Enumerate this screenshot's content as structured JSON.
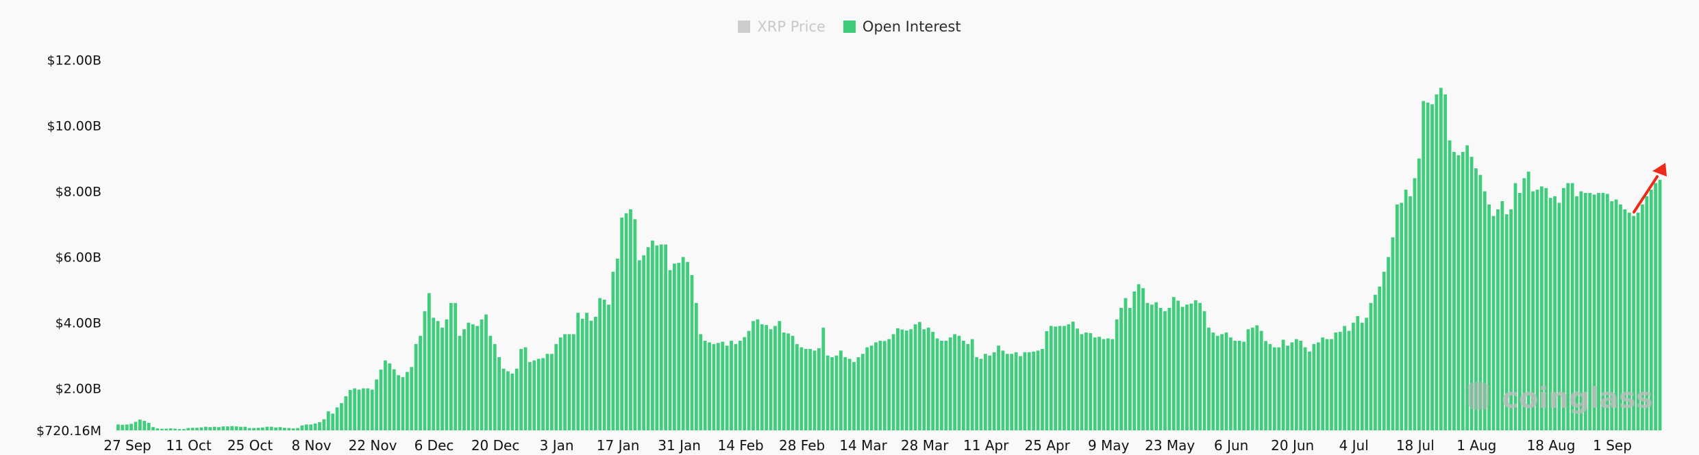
{
  "legend": [
    {
      "label": "XRP Price",
      "color": "#cccccc",
      "state": "off"
    },
    {
      "label": "Open Interest",
      "color": "#3fcd7c",
      "state": "on"
    }
  ],
  "watermark": "coinglass",
  "annotation": {
    "type": "arrow",
    "color": "#ee2a1b",
    "description": "red upward arrow at the last bars indicating rising open interest"
  },
  "chart_data": {
    "type": "bar",
    "title": "",
    "xlabel": "",
    "ylabel": "",
    "series": [
      {
        "name": "Open Interest",
        "color": "#3fcd7c"
      }
    ],
    "ylim": [
      0.72016,
      12.0
    ],
    "yticks": [
      {
        "label": "$12.00B",
        "value": 12.0
      },
      {
        "label": "$10.00B",
        "value": 10.0
      },
      {
        "label": "$8.00B",
        "value": 8.0
      },
      {
        "label": "$6.00B",
        "value": 6.0
      },
      {
        "label": "$4.00B",
        "value": 4.0
      },
      {
        "label": "$2.00B",
        "value": 2.0
      },
      {
        "label": "$720.16M",
        "value": 0.72016
      }
    ],
    "xticks": [
      {
        "label": "27 Sep",
        "index": 2
      },
      {
        "label": "11 Oct",
        "index": 16
      },
      {
        "label": "25 Oct",
        "index": 30
      },
      {
        "label": "8 Nov",
        "index": 44
      },
      {
        "label": "22 Nov",
        "index": 58
      },
      {
        "label": "6 Dec",
        "index": 72
      },
      {
        "label": "20 Dec",
        "index": 86
      },
      {
        "label": "3 Jan",
        "index": 100
      },
      {
        "label": "17 Jan",
        "index": 114
      },
      {
        "label": "31 Jan",
        "index": 128
      },
      {
        "label": "14 Feb",
        "index": 142
      },
      {
        "label": "28 Feb",
        "index": 156
      },
      {
        "label": "14 Mar",
        "index": 170
      },
      {
        "label": "28 Mar",
        "index": 184
      },
      {
        "label": "11 Apr",
        "index": 198
      },
      {
        "label": "25 Apr",
        "index": 212
      },
      {
        "label": "9 May",
        "index": 226
      },
      {
        "label": "23 May",
        "index": 240
      },
      {
        "label": "6 Jun",
        "index": 254
      },
      {
        "label": "20 Jun",
        "index": 268
      },
      {
        "label": "4 Jul",
        "index": 282
      },
      {
        "label": "18 Jul",
        "index": 296
      },
      {
        "label": "1 Aug",
        "index": 310
      },
      {
        "label": "18 Aug",
        "index": 327
      },
      {
        "label": "1 Sep",
        "index": 341
      }
    ],
    "unit": "USD billions",
    "values": [
      0.9,
      0.89,
      0.9,
      0.92,
      0.98,
      1.05,
      1.01,
      0.95,
      0.82,
      0.78,
      0.77,
      0.77,
      0.78,
      0.77,
      0.76,
      0.76,
      0.79,
      0.8,
      0.8,
      0.81,
      0.83,
      0.82,
      0.83,
      0.82,
      0.84,
      0.84,
      0.85,
      0.84,
      0.83,
      0.83,
      0.79,
      0.79,
      0.8,
      0.81,
      0.83,
      0.83,
      0.81,
      0.82,
      0.8,
      0.79,
      0.78,
      0.79,
      0.87,
      0.9,
      0.9,
      0.93,
      0.97,
      1.06,
      1.3,
      1.23,
      1.42,
      1.55,
      1.76,
      1.95,
      2.0,
      1.96,
      2.0,
      2.0,
      1.96,
      2.27,
      2.57,
      2.85,
      2.76,
      2.58,
      2.4,
      2.34,
      2.5,
      2.65,
      3.35,
      3.6,
      4.35,
      4.9,
      4.15,
      4.05,
      3.85,
      4.1,
      4.6,
      4.6,
      3.6,
      3.8,
      4.0,
      3.95,
      3.9,
      4.1,
      4.25,
      3.6,
      3.35,
      2.95,
      2.6,
      2.52,
      2.45,
      2.6,
      3.2,
      3.25,
      2.8,
      2.85,
      2.9,
      2.92,
      3.05,
      3.05,
      3.35,
      3.55,
      3.65,
      3.65,
      3.65,
      4.3,
      4.12,
      4.3,
      4.06,
      4.18,
      4.75,
      4.7,
      4.55,
      5.55,
      5.95,
      7.2,
      7.33,
      7.45,
      7.15,
      5.9,
      6.05,
      6.3,
      6.5,
      6.35,
      6.38,
      6.38,
      5.6,
      5.8,
      5.82,
      6.0,
      5.85,
      5.45,
      4.6,
      3.65,
      3.45,
      3.4,
      3.35,
      3.38,
      3.42,
      3.3,
      3.45,
      3.35,
      3.45,
      3.56,
      3.75,
      4.05,
      4.1,
      3.95,
      3.93,
      3.8,
      3.9,
      4.05,
      3.7,
      3.67,
      3.6,
      3.35,
      3.25,
      3.2,
      3.2,
      3.15,
      3.22,
      3.85,
      3.0,
      2.95,
      3.0,
      3.15,
      2.95,
      2.9,
      2.8,
      2.95,
      3.05,
      3.25,
      3.3,
      3.4,
      3.45,
      3.44,
      3.5,
      3.65,
      3.83,
      3.79,
      3.76,
      3.8,
      3.95,
      4.02,
      3.8,
      3.85,
      3.72,
      3.52,
      3.45,
      3.45,
      3.55,
      3.65,
      3.6,
      3.45,
      3.35,
      3.5,
      2.95,
      2.9,
      3.05,
      3.0,
      3.1,
      3.3,
      3.15,
      3.05,
      3.05,
      3.1,
      2.98,
      3.1,
      3.1,
      3.12,
      3.15,
      3.2,
      3.74,
      3.9,
      3.88,
      3.9,
      3.9,
      3.95,
      4.03,
      3.82,
      3.65,
      3.7,
      3.68,
      3.55,
      3.57,
      3.5,
      3.52,
      3.5,
      4.1,
      4.45,
      4.75,
      4.45,
      4.95,
      5.17,
      5.05,
      4.6,
      4.55,
      4.62,
      4.45,
      4.35,
      4.45,
      4.78,
      4.67,
      4.48,
      4.55,
      4.58,
      4.68,
      4.6,
      4.35,
      3.85,
      3.7,
      3.6,
      3.65,
      3.7,
      3.55,
      3.45,
      3.45,
      3.42,
      3.8,
      3.85,
      3.92,
      3.75,
      3.44,
      3.35,
      3.25,
      3.25,
      3.48,
      3.3,
      3.4,
      3.5,
      3.45,
      3.25,
      3.12,
      3.35,
      3.4,
      3.55,
      3.5,
      3.5,
      3.7,
      3.72,
      3.9,
      3.75,
      4.0,
      4.2,
      4.0,
      4.15,
      4.6,
      4.85,
      5.1,
      5.55,
      6.0,
      6.6,
      7.6,
      7.65,
      8.05,
      7.85,
      8.4,
      9.0,
      10.75,
      10.7,
      10.65,
      10.95,
      11.15,
      10.95,
      9.55,
      9.2,
      9.1,
      9.2,
      9.4,
      9.05,
      8.7,
      8.5,
      8.0,
      7.6,
      7.25,
      7.45,
      7.7,
      7.3,
      7.45,
      8.25,
      7.95,
      8.4,
      8.6,
      8.0,
      8.05,
      8.15,
      8.1,
      7.8,
      7.85,
      7.65,
      8.1,
      8.25,
      8.25,
      7.85,
      8.0,
      7.95,
      7.95,
      7.9,
      7.95,
      7.95,
      7.92,
      7.7,
      7.75,
      7.6,
      7.45,
      7.35,
      7.25,
      7.35,
      7.6,
      7.85,
      8.05,
      8.25,
      8.35
    ]
  }
}
